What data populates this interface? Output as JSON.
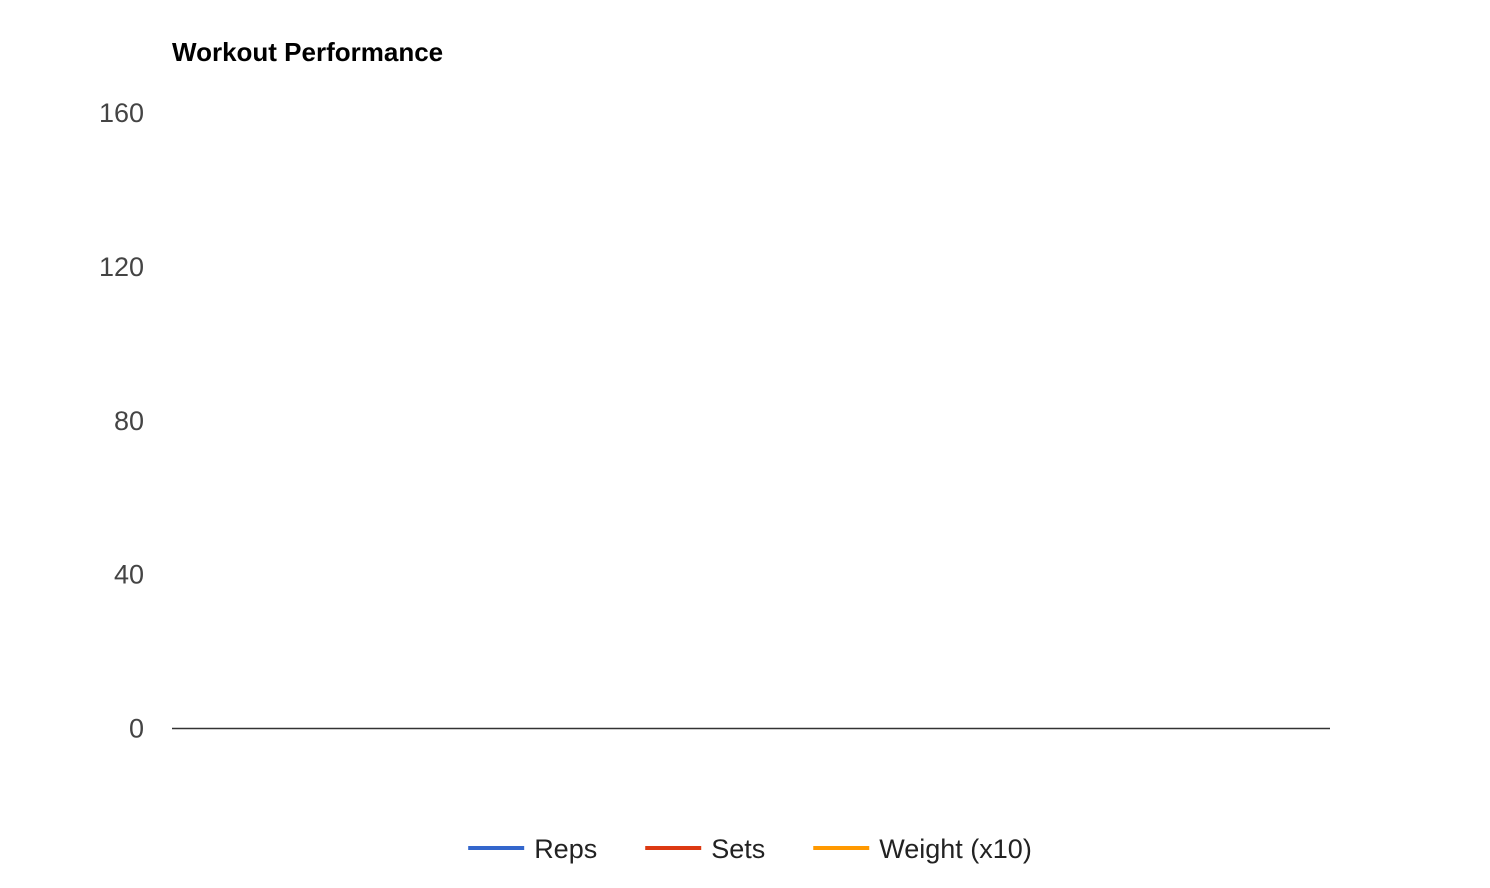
{
  "chart_data": {
    "type": "line",
    "title": "Workout Performance",
    "xlabel": "",
    "ylabel": "",
    "ylim": [
      0,
      160
    ],
    "yticks": [
      0,
      40,
      80,
      120,
      160
    ],
    "grid": false,
    "legend_position": "bottom",
    "categories": [],
    "series": [
      {
        "name": "Reps",
        "color": "#3366cc",
        "values": []
      },
      {
        "name": "Sets",
        "color": "#dc3912",
        "values": []
      },
      {
        "name": "Weight (x10)",
        "color": "#ff9900",
        "values": []
      }
    ]
  }
}
